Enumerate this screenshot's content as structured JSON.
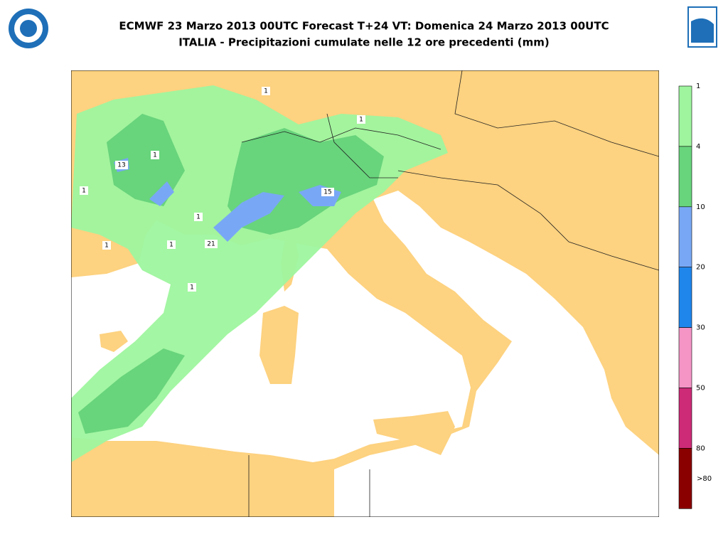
{
  "header": {
    "title": "ECMWF 23 Marzo 2013 00UTC Forecast T+24 VT: Domenica 24 Marzo 2013 00UTC",
    "subtitle": "ITALIA - Precipitazioni cumulate nelle 12 ore precedenti (mm)"
  },
  "legend": {
    "labels": [
      "1",
      "4",
      "10",
      "20",
      "30",
      "50",
      "80",
      ">80"
    ],
    "colors": [
      "#9ef59e",
      "#68d47c",
      "#78a8f5",
      "#1f86ec",
      "#f495c6",
      "#cd2a77",
      "#8a0000"
    ]
  },
  "map_labels": [
    "13",
    "15",
    "21",
    "1",
    "1",
    "1",
    "1",
    "1",
    "1",
    "1",
    "1"
  ]
}
